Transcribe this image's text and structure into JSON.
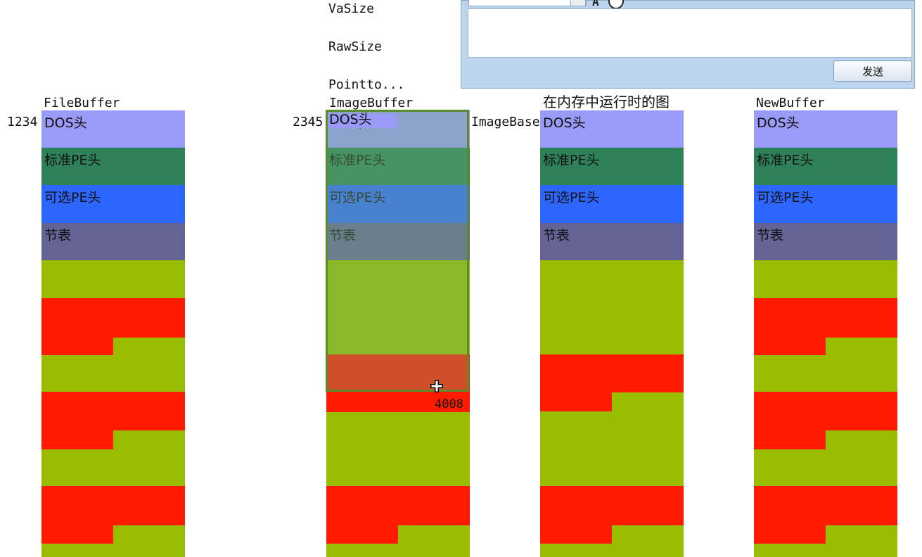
{
  "top_fields": [
    "VaSize",
    "RawSize",
    "Pointto..."
  ],
  "chat": {
    "send_label": "发送"
  },
  "columns": [
    {
      "title": "FileBuffer",
      "addr": "1234",
      "labels": {
        "dos": "DOS头",
        "std": "标准PE头",
        "opt": "可选PE头",
        "sec": "节表"
      }
    },
    {
      "title": "ImageBuffer",
      "addr": "2345",
      "side_label": "ImageBase",
      "labels": {
        "dos": "DOS头",
        "std": "标准PE头",
        "opt": "可选PE头",
        "sec": "节表"
      }
    },
    {
      "title": "在内存中运行时的图",
      "labels": {
        "dos": "DOS头",
        "std": "标准PE头",
        "opt": "可选PE头",
        "sec": "节表"
      }
    },
    {
      "title": "NewBuffer",
      "labels": {
        "dos": "DOS头",
        "std": "标准PE头",
        "opt": "可选PE头",
        "sec": "节表"
      }
    }
  ],
  "annotation": "4008",
  "colors": {
    "dos": "#9a9af8",
    "std": "#2e8158",
    "opt": "#2d66ff",
    "sec": "#636396",
    "section_data": "#99bb00",
    "section_gap": "#ff1a00",
    "selection": "#5e8a2e"
  },
  "icons": [
    "font-icon",
    "emoji-icon",
    "move-cursor-icon"
  ]
}
